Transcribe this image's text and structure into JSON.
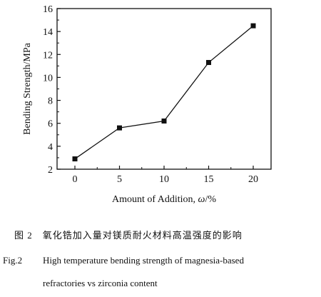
{
  "chart_data": {
    "type": "line",
    "x": [
      0,
      5,
      10,
      15,
      20
    ],
    "series": [
      {
        "values": [
          2.9,
          5.6,
          6.2,
          11.3,
          14.5
        ]
      }
    ],
    "xlabel_prefix": "Amount of Addition, ",
    "xlabel_omega": "ω",
    "xlabel_suffix": "/%",
    "ylabel": "Bending Strength/MPa",
    "xlim": [
      -2,
      22
    ],
    "ylim": [
      2,
      16
    ],
    "xticks": [
      "0",
      "5",
      "10",
      "15",
      "20"
    ],
    "yticks": [
      "2",
      "4",
      "6",
      "8",
      "10",
      "12",
      "14",
      "16"
    ],
    "grid": false,
    "marker": "square"
  },
  "caption": {
    "cn_number": "图 2",
    "cn_text": "氧化锆加入量对镁质耐火材料高温强度的影响",
    "en_number": "Fig.2",
    "en_line1": "High temperature bending strength of magnesia-based",
    "en_line2": "refractories vs zirconia content"
  }
}
